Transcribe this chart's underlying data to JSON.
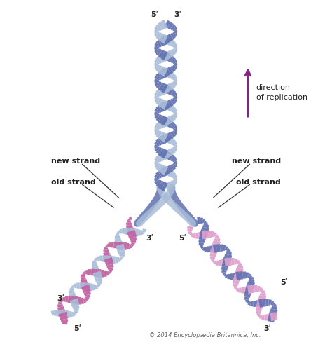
{
  "bg_color": "#ffffff",
  "blue_dark": "#6070b0",
  "blue_light": "#a8bcd8",
  "blue_mid": "#7890c0",
  "pink_dark": "#c060a0",
  "pink_light": "#dda0cc",
  "pink_mid": "#cc78b8",
  "arrow_color": "#882288",
  "text_color": "#222222",
  "copyright": "© 2014 Encyclopædia Britannica, Inc.",
  "label_new": "new strand",
  "label_old": "old strand",
  "label_dir": "direction\nof replication",
  "p5": "5ʹ",
  "p3": "3ʹ"
}
